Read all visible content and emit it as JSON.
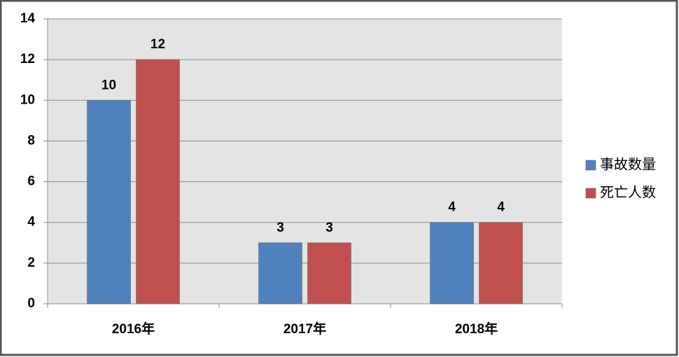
{
  "chart_data": {
    "type": "bar",
    "categories": [
      "2016年",
      "2017年",
      "2018年"
    ],
    "series": [
      {
        "name": "事故数量",
        "color": "#4f81bd",
        "values": [
          10,
          3,
          4
        ]
      },
      {
        "name": "死亡人数",
        "color": "#c0504d",
        "values": [
          12,
          3,
          4
        ]
      }
    ],
    "ylim": [
      0,
      14
    ],
    "yticks": [
      0,
      2,
      4,
      6,
      8,
      10,
      12,
      14
    ],
    "grid": true,
    "legend": "right"
  }
}
